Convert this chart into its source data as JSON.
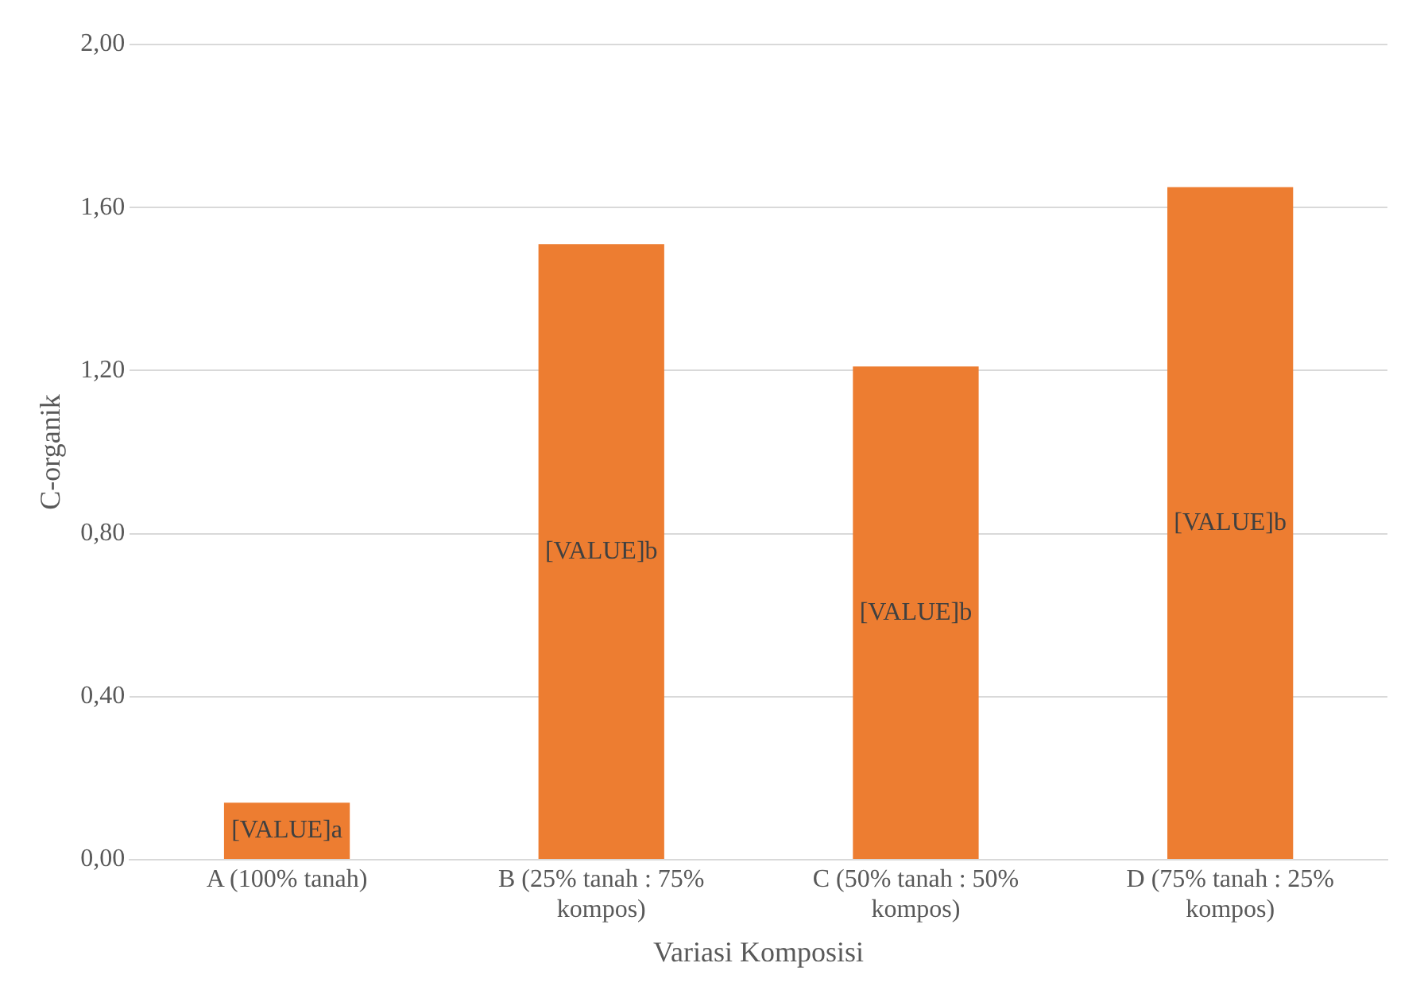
{
  "chart_data": {
    "type": "bar",
    "xlabel": "Variasi Komposisi",
    "ylabel": "C-organik",
    "categories": [
      "A (100% tanah)",
      "B (25% tanah : 75% kompos)",
      "C (50% tanah : 50% kompos)",
      "D (75% tanah : 25% kompos)"
    ],
    "values": [
      0.14,
      1.51,
      1.21,
      1.65
    ],
    "color": "#ed7d31",
    "value_labels": [
      "[VALUE]a",
      "[VALUE]b",
      "[VALUE]b",
      "[VALUE]b"
    ],
    "ylim": [
      0,
      2
    ],
    "yticks": [
      {
        "value": 0,
        "label": "0,00"
      },
      {
        "value": 0.4,
        "label": "0,40"
      },
      {
        "value": 0.8,
        "label": "0,80"
      },
      {
        "value": 1.2,
        "label": "1,20"
      },
      {
        "value": 1.6,
        "label": "1,60"
      },
      {
        "value": 2,
        "label": "2,00"
      }
    ],
    "grid": "y"
  }
}
